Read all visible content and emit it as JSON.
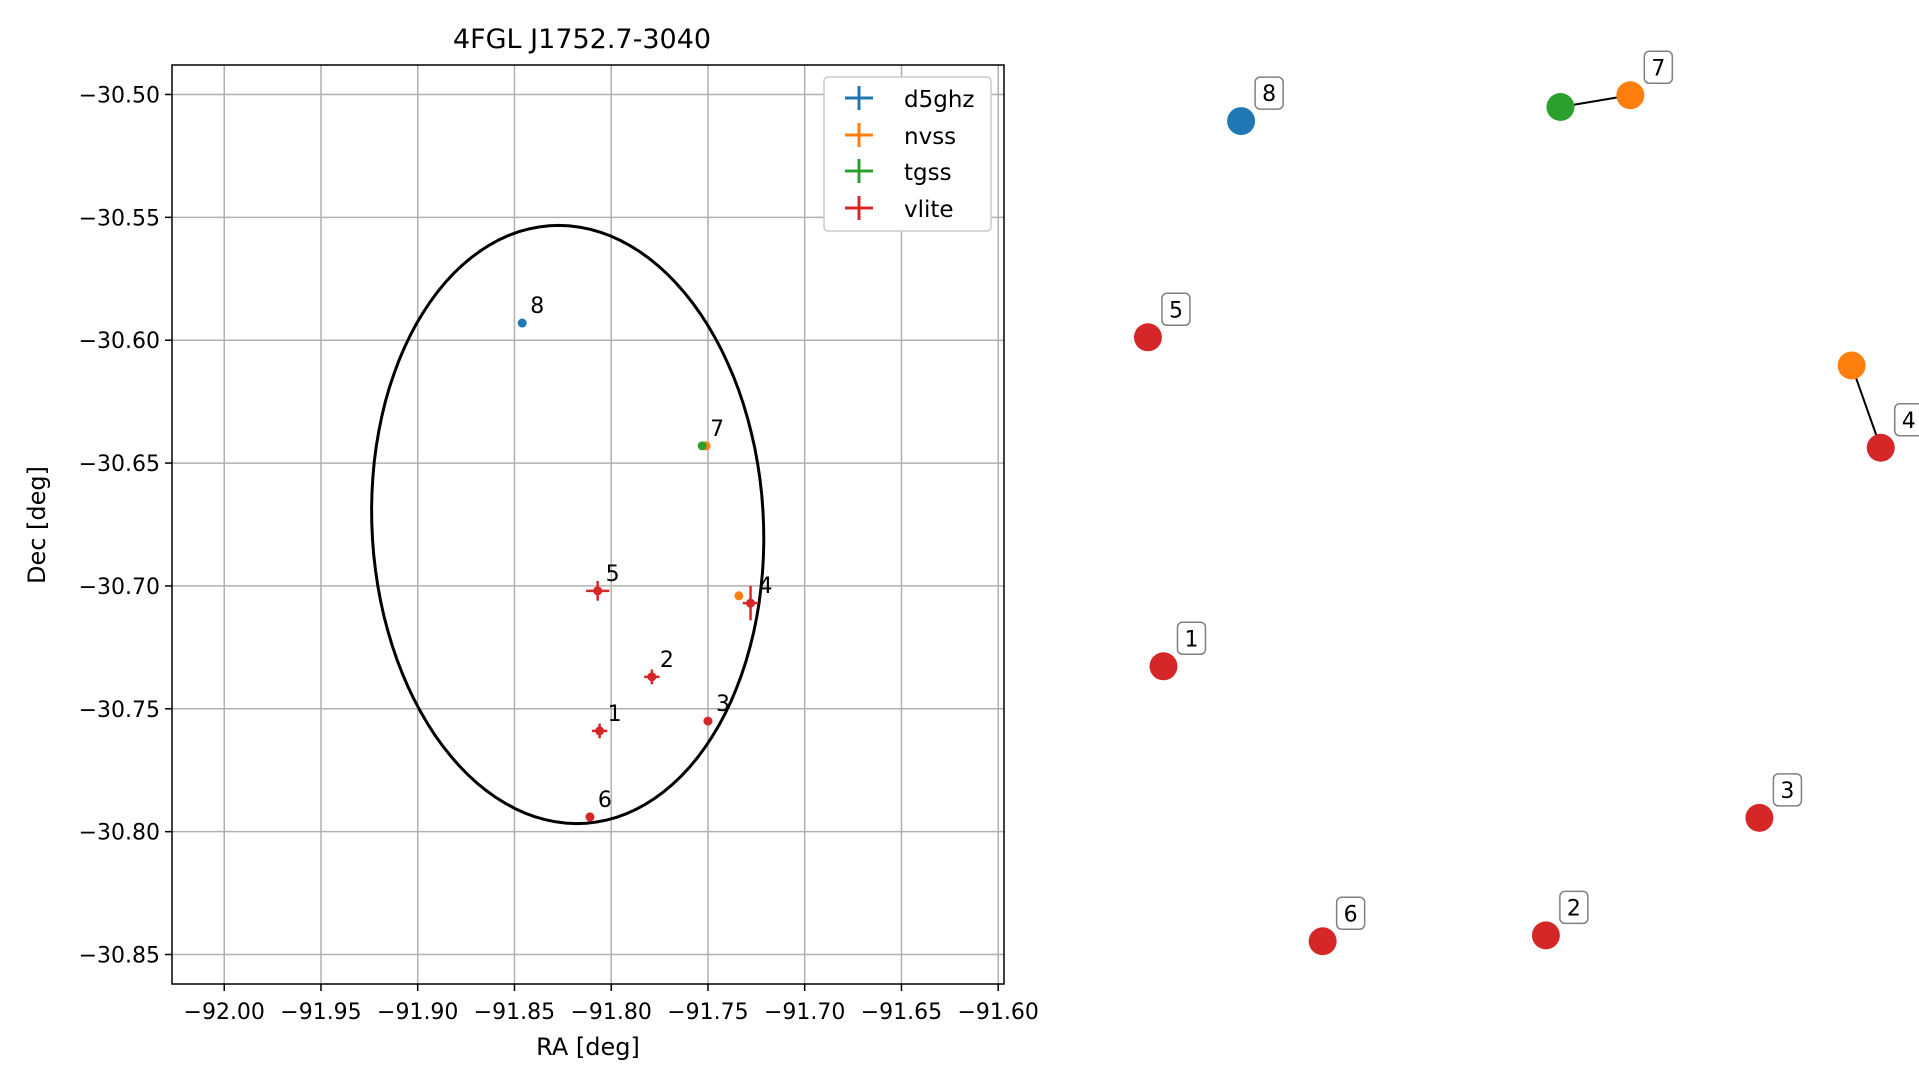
{
  "chart_data": [
    {
      "type": "scatter",
      "title": "4FGL J1752.7-3040",
      "xlabel": "RA [deg]",
      "ylabel": "Dec [deg]",
      "xlim": [
        -92.027,
        -91.597
      ],
      "ylim": [
        -30.862,
        -30.488
      ],
      "xticks": [
        -92.0,
        -91.95,
        -91.9,
        -91.85,
        -91.8,
        -91.75,
        -91.7,
        -91.65,
        -91.6
      ],
      "xtick_labels": [
        "−92.00",
        "−91.95",
        "−91.90",
        "−91.85",
        "−91.80",
        "−91.75",
        "−91.70",
        "−91.65",
        "−91.60"
      ],
      "yticks": [
        -30.5,
        -30.55,
        -30.6,
        -30.65,
        -30.7,
        -30.75,
        -30.8,
        -30.85
      ],
      "ytick_labels": [
        "−30.50",
        "−30.55",
        "−30.60",
        "−30.65",
        "−30.70",
        "−30.75",
        "−30.80",
        "−30.85"
      ],
      "grid": true,
      "legend_position": "upper-right",
      "ellipse": {
        "center_ra": -91.8225,
        "center_dec": -30.675,
        "semi_ra": 0.101,
        "semi_dec": 0.122,
        "angle_deg": 7,
        "color": "#000000"
      },
      "series": [
        {
          "name": "d5ghz",
          "color": "#1f77b4",
          "points": [
            {
              "ra": -91.846,
              "dec": -30.593,
              "label": "8",
              "err_ra": 0.0,
              "err_dec": 0.0
            }
          ]
        },
        {
          "name": "nvss",
          "color": "#ff7f0e",
          "points": [
            {
              "ra": -91.734,
              "dec": -30.704,
              "label": "",
              "err_ra": 0.0,
              "err_dec": 0.0
            },
            {
              "ra": -91.751,
              "dec": -30.643,
              "label": "",
              "err_ra": 0.0,
              "err_dec": 0.0
            }
          ]
        },
        {
          "name": "tgss",
          "color": "#2ca02c",
          "points": [
            {
              "ra": -91.753,
              "dec": -30.643,
              "label": "7",
              "err_ra": 0.0,
              "err_dec": 0.0
            }
          ]
        },
        {
          "name": "vlite",
          "color": "#d62728",
          "points": [
            {
              "ra": -91.806,
              "dec": -30.759,
              "label": "1",
              "err_ra": 0.004,
              "err_dec": 0.003
            },
            {
              "ra": -91.779,
              "dec": -30.737,
              "label": "2",
              "err_ra": 0.004,
              "err_dec": 0.003
            },
            {
              "ra": -91.75,
              "dec": -30.755,
              "label": "3",
              "err_ra": 0.0,
              "err_dec": 0.0
            },
            {
              "ra": -91.728,
              "dec": -30.707,
              "label": "4",
              "err_ra": 0.004,
              "err_dec": 0.007
            },
            {
              "ra": -91.807,
              "dec": -30.702,
              "label": "5",
              "err_ra": 0.006,
              "err_dec": 0.004
            },
            {
              "ra": -91.811,
              "dec": -30.794,
              "label": "6",
              "err_ra": 0.0,
              "err_dec": 0.0
            }
          ]
        }
      ]
    },
    {
      "type": "scatter",
      "axes": false,
      "points": [
        {
          "x": -1.84,
          "y": 1.98,
          "color": "#1f77b4",
          "label": "8"
        },
        {
          "x": 1.45,
          "y": 2.1,
          "color": "#2ca02c",
          "label": ""
        },
        {
          "x": 2.17,
          "y": 2.2,
          "color": "#ff7f0e",
          "label": "7"
        },
        {
          "x": -2.8,
          "y": 0.14,
          "color": "#d62728",
          "label": "5"
        },
        {
          "x": 4.45,
          "y": -0.1,
          "color": "#ff7f0e",
          "label": ""
        },
        {
          "x": 4.75,
          "y": -0.8,
          "color": "#d62728",
          "label": "4"
        },
        {
          "x": -2.64,
          "y": -2.66,
          "color": "#d62728",
          "label": "1"
        },
        {
          "x": 3.5,
          "y": -3.95,
          "color": "#d62728",
          "label": "3"
        },
        {
          "x": -1.0,
          "y": -5.0,
          "color": "#d62728",
          "label": "6"
        },
        {
          "x": 1.3,
          "y": -4.95,
          "color": "#d62728",
          "label": "2"
        }
      ],
      "links": [
        [
          1,
          2
        ],
        [
          4,
          5
        ]
      ],
      "xlim": [
        -3.5,
        5.0
      ],
      "ylim": [
        -5.5,
        2.5
      ]
    }
  ]
}
